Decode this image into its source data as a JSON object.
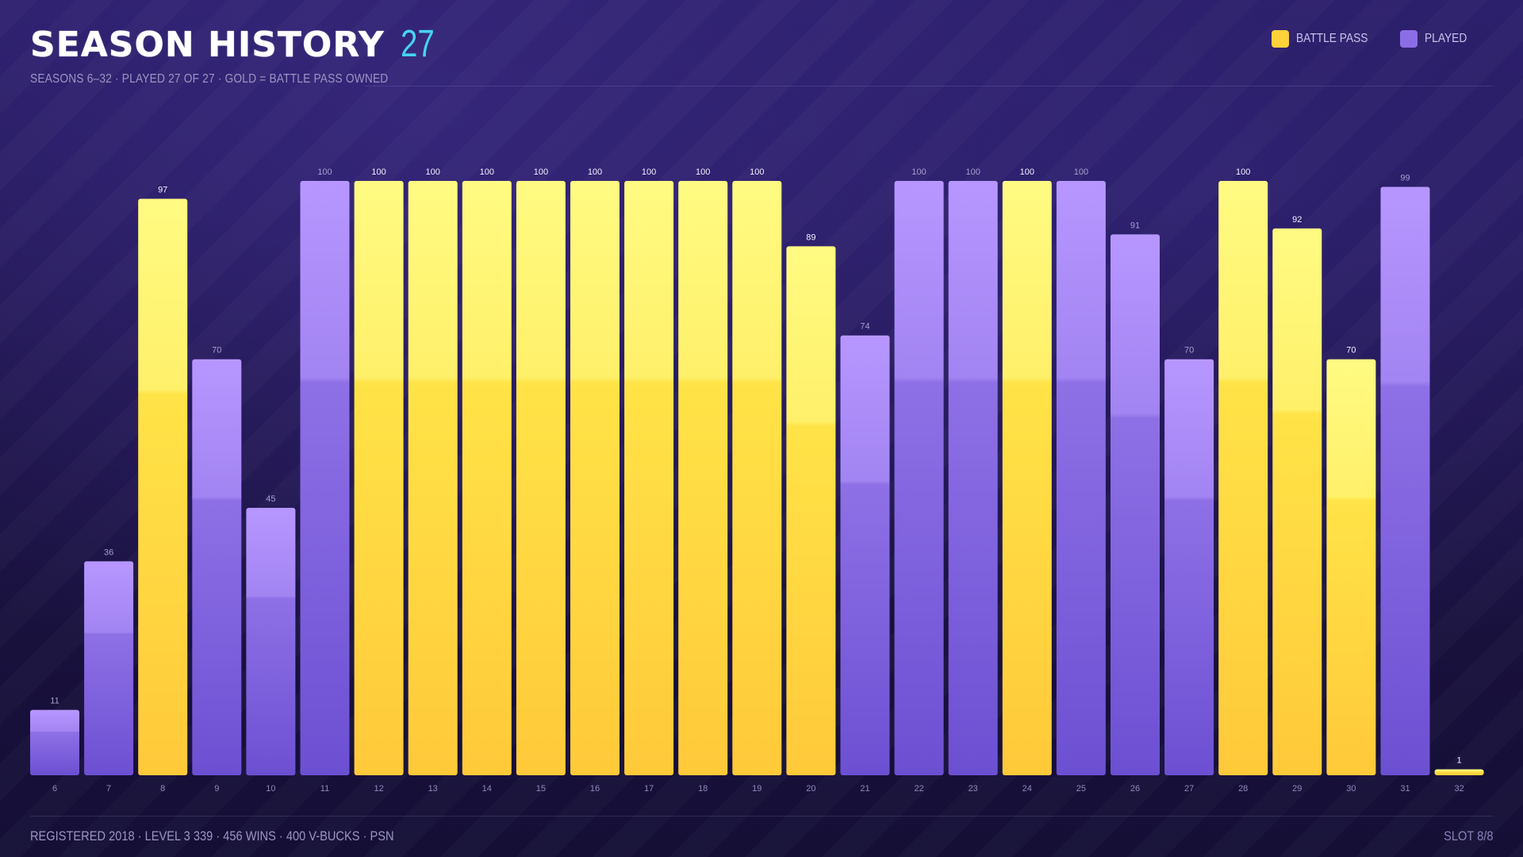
{
  "header": {
    "title": "SEASON HISTORY",
    "count": "27",
    "subtitle": "SEASONS 6–32 · PLAYED 27 OF 27 · GOLD = BATTLE PASS OWNED"
  },
  "legend": [
    {
      "label": "BATTLE PASS",
      "color": "#ffd23a"
    },
    {
      "label": "PLAYED",
      "color": "#8b6ee6"
    }
  ],
  "footer": {
    "left": "REGISTERED 2018 · LEVEL 3 339 · 456 WINS · 400 V-BUCKS · PSN",
    "right": "SLOT 8/8"
  },
  "colors": {
    "gold_top": "#fff97a",
    "gold_bottom": "#ffc93a",
    "purple_top": "#b594ff",
    "purple_bottom": "#6f52d6",
    "accent": "#45d4f2"
  },
  "chart_data": {
    "type": "bar",
    "categories": [
      "6",
      "7",
      "8",
      "9",
      "10",
      "11",
      "12",
      "13",
      "14",
      "15",
      "16",
      "17",
      "18",
      "19",
      "20",
      "21",
      "22",
      "23",
      "24",
      "25",
      "26",
      "27",
      "28",
      "29",
      "30",
      "31",
      "32"
    ],
    "values": [
      11,
      36,
      97,
      70,
      45,
      100,
      100,
      100,
      100,
      100,
      100,
      100,
      100,
      100,
      89,
      74,
      100,
      100,
      100,
      100,
      91,
      70,
      100,
      92,
      70,
      99,
      1
    ],
    "battle_pass": [
      false,
      false,
      true,
      false,
      false,
      false,
      true,
      true,
      true,
      true,
      true,
      true,
      true,
      true,
      true,
      false,
      false,
      false,
      true,
      false,
      false,
      false,
      true,
      true,
      true,
      false,
      true
    ],
    "ylim": [
      0,
      100
    ],
    "grid": false
  }
}
